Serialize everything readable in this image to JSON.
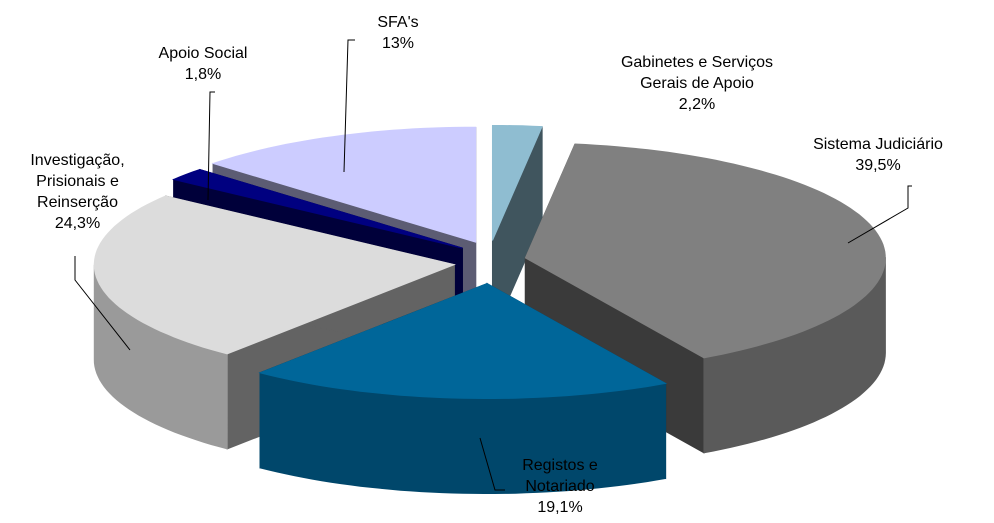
{
  "chart_data": {
    "type": "pie3d",
    "categories": [
      "Gabinetes e Serviços Gerais de Apoio",
      "Sistema Judiciário",
      "Registos e Notariado",
      "Investigação, Prisionais e Reinserção",
      "Apoio Social",
      "SFA's"
    ],
    "values": [
      2.2,
      39.5,
      19.1,
      24.3,
      1.8,
      13
    ],
    "value_labels": [
      "2,2%",
      "39,5%",
      "19,1%",
      "24,3%",
      "1,8%",
      "13%"
    ],
    "colors": [
      "#8fbdd1",
      "#808080",
      "#006699",
      "#dcdcdc",
      "#000080",
      "#ccccff"
    ]
  }
}
